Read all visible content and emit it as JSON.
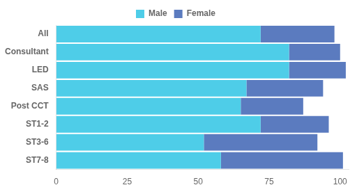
{
  "chart_data": {
    "type": "bar",
    "orientation": "horizontal",
    "stacked": true,
    "categories": [
      "All",
      "Consultant",
      "LED",
      "SAS",
      "Post CCT",
      "ST1-2",
      "ST3-6",
      "ST7-8"
    ],
    "series": [
      {
        "name": "Male",
        "color": "#4ecde8",
        "values": [
          72,
          82,
          82,
          67,
          65,
          72,
          52,
          58
        ]
      },
      {
        "name": "Female",
        "color": "#5b7bbf",
        "values": [
          26,
          18,
          20,
          27,
          22,
          24,
          40,
          43
        ]
      }
    ],
    "xlim": [
      0,
      103
    ],
    "xticks": [
      0,
      25,
      50,
      75,
      100
    ],
    "grid": false,
    "legend": "top"
  }
}
